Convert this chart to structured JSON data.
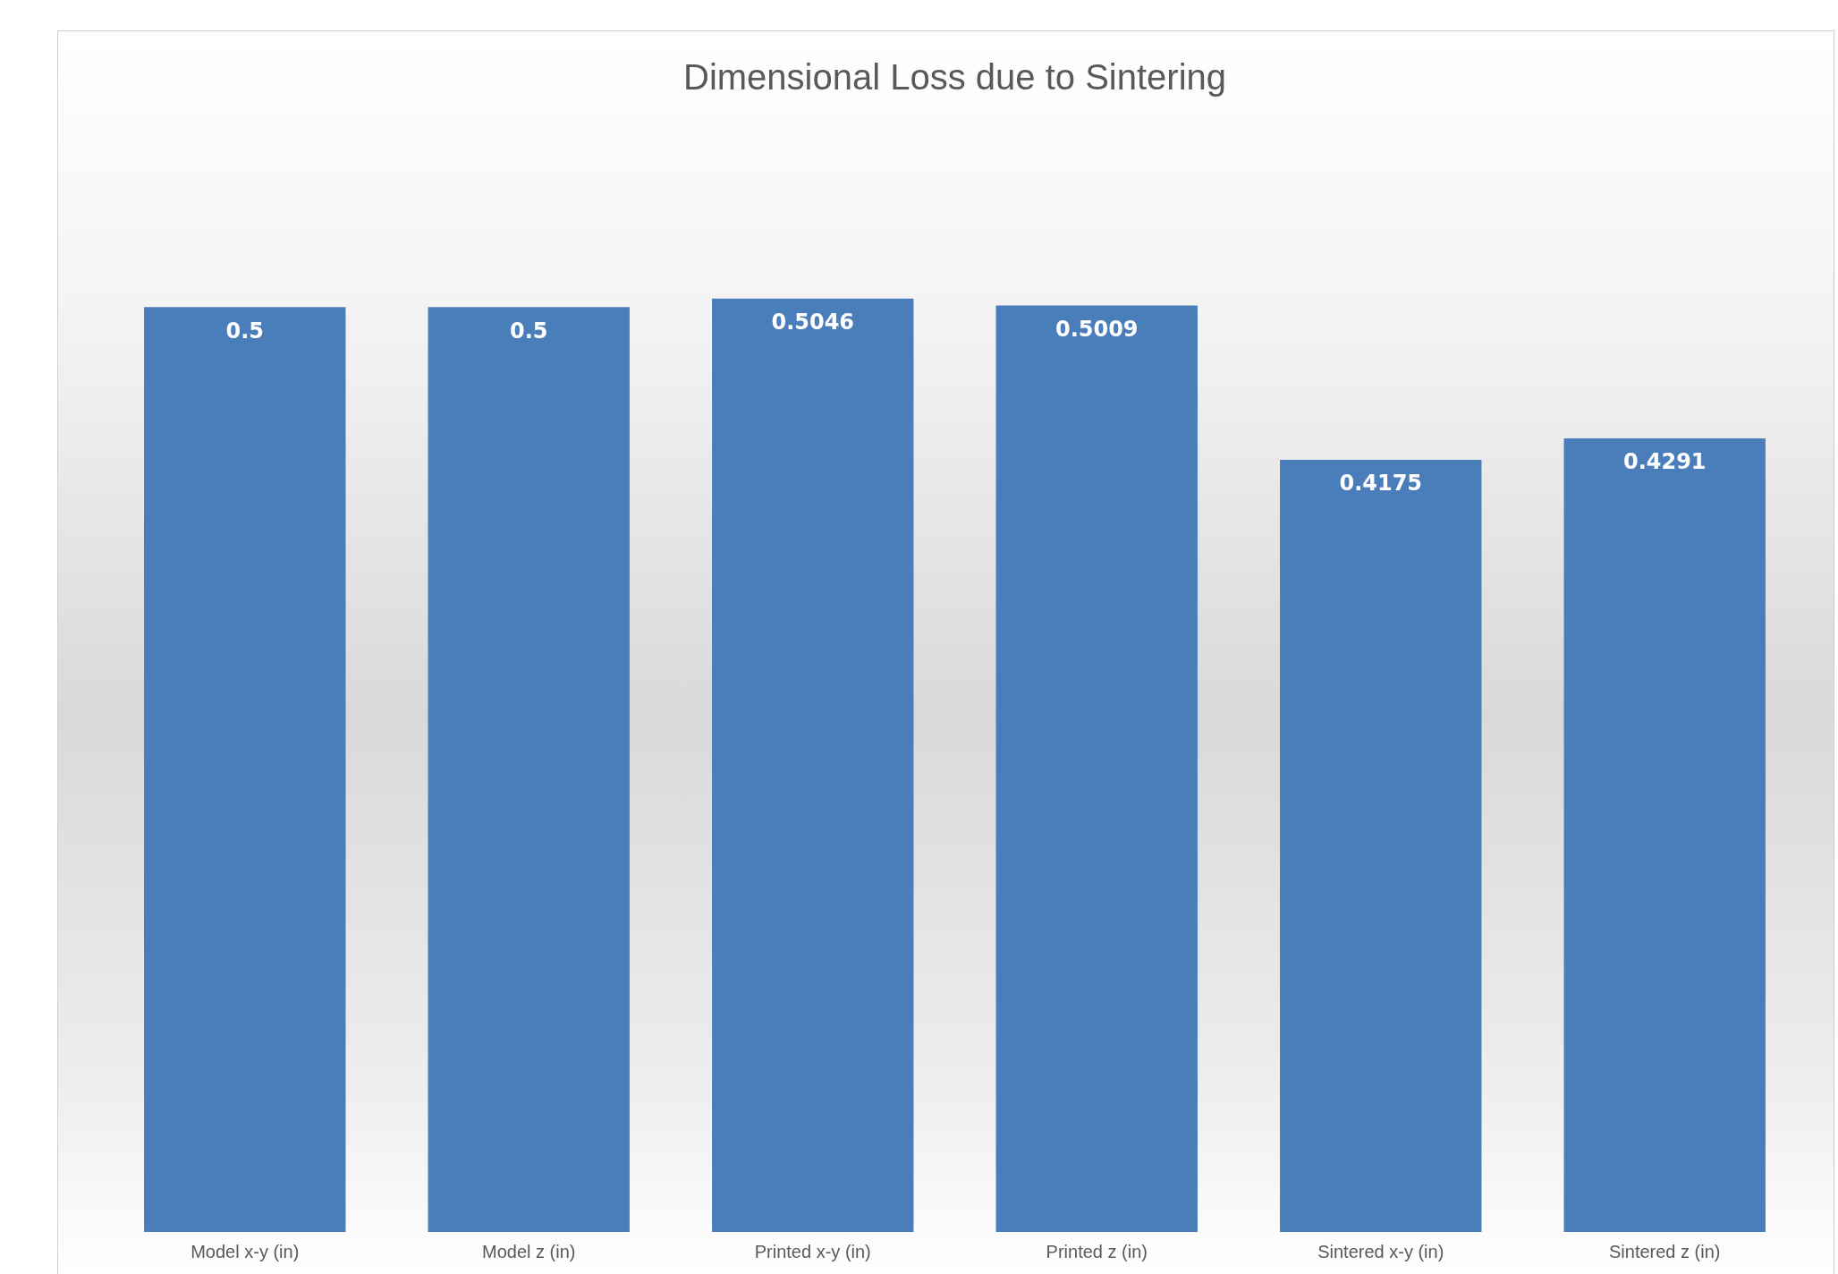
{
  "chart_data": {
    "type": "bar",
    "title": "Dimensional Loss due to Sintering",
    "categories": [
      "Model x-y (in)",
      "Model z (in)",
      "Printed x-y (in)",
      "Printed z (in)",
      "Sintered x-y (in)",
      "Sintered z (in)"
    ],
    "values": [
      0.5,
      0.5,
      0.5046,
      0.5009,
      0.4175,
      0.4291
    ],
    "color": "#4a7ebb",
    "data_labels": true,
    "grid": false,
    "legend": false
  }
}
